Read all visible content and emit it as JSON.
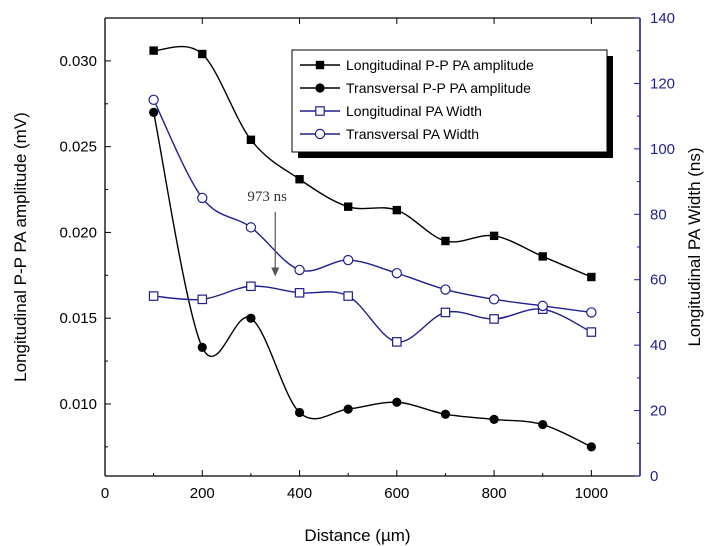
{
  "chart_data": {
    "type": "scatter",
    "xlabel": "Distance (µm)",
    "ylabel_left": "Longitudinal P-P PA amplitude (mV)",
    "ylabel_right": "Longitudinal PA Width (ns)",
    "xlim": [
      0,
      1100
    ],
    "ylim_left": [
      0.0058,
      0.0325
    ],
    "ylim_right": [
      0,
      140
    ],
    "x_ticks": [
      "0",
      "200",
      "400",
      "600",
      "800",
      "1000"
    ],
    "y_left_ticks": [
      "0.010",
      "0.015",
      "0.020",
      "0.025",
      "0.030"
    ],
    "y_right_ticks": [
      "0",
      "20",
      "40",
      "60",
      "80",
      "100",
      "120",
      "140"
    ],
    "x_tick_values": [
      0,
      200,
      400,
      600,
      800,
      1000
    ],
    "y_left_tick_values": [
      0.01,
      0.015,
      0.02,
      0.025,
      0.03
    ],
    "y_right_tick_values": [
      0,
      20,
      40,
      60,
      80,
      100,
      120,
      140
    ],
    "legend_position": "top-right",
    "annotation": {
      "text": "973 ns",
      "arrow_x": 350,
      "arrow_y_right": 61
    },
    "colors": {
      "black": "#000000",
      "blue": "#1f1f8f"
    },
    "x": [
      100,
      200,
      300,
      400,
      500,
      600,
      700,
      800,
      900,
      1000
    ],
    "series": [
      {
        "name": "Longitudinal P-P PA amplitude",
        "axis": "left",
        "marker": "filled-square",
        "color": "#000000",
        "values": [
          0.0306,
          0.0304,
          0.0254,
          0.0231,
          0.0215,
          0.0213,
          0.0195,
          0.0198,
          0.0186,
          0.0174
        ]
      },
      {
        "name": "Transversal P-P PA amplitude",
        "axis": "left",
        "marker": "filled-circle",
        "color": "#000000",
        "values": [
          0.027,
          0.0133,
          0.015,
          0.0095,
          0.0097,
          0.0101,
          0.0094,
          0.0091,
          0.0088,
          0.0075
        ]
      },
      {
        "name": "Longitudinal PA Width",
        "axis": "right",
        "marker": "open-square",
        "color": "#1f1f8f",
        "values": [
          55,
          54,
          58,
          56,
          55,
          41,
          50,
          48,
          51,
          44
        ]
      },
      {
        "name": "Transversal PA Width",
        "axis": "right",
        "marker": "open-circle",
        "color": "#1f1f8f",
        "values": [
          115,
          85,
          76,
          63,
          66,
          62,
          57,
          54,
          52,
          50
        ]
      }
    ]
  }
}
